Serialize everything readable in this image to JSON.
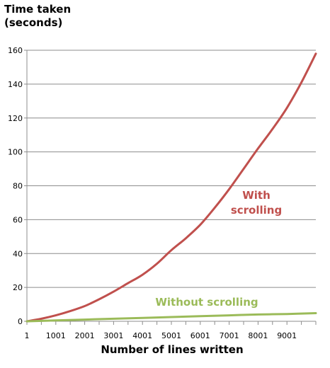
{
  "chart_data": {
    "type": "line",
    "ylabel_lines": [
      "Time taken",
      "(seconds)"
    ],
    "xlabel": "Number of lines written",
    "ylim": [
      0,
      160
    ],
    "y_ticks": [
      0,
      20,
      40,
      60,
      80,
      100,
      120,
      140,
      160
    ],
    "x_ticks": [
      1,
      1001,
      2001,
      3001,
      4001,
      5001,
      6001,
      7001,
      8001,
      9001
    ],
    "xlim": [
      1,
      10001
    ],
    "grid": "horizontal",
    "series": [
      {
        "name_lines": [
          "With",
          "scrolling"
        ],
        "color": "#c0504d",
        "x": [
          1,
          501,
          1001,
          1501,
          2001,
          2501,
          3001,
          3501,
          4001,
          4501,
          5001,
          5501,
          6001,
          6501,
          7001,
          7501,
          8001,
          8501,
          9001,
          9501,
          10001
        ],
        "y": [
          0,
          1.5,
          3.5,
          6,
          9,
          13,
          17.5,
          22.5,
          27.5,
          34,
          42,
          49,
          57,
          67,
          78,
          90,
          102,
          113.5,
          126,
          141,
          158
        ]
      },
      {
        "name_lines": [
          "Without scrolling"
        ],
        "color": "#9bbb59",
        "x": [
          1,
          1001,
          2001,
          3001,
          4001,
          5001,
          6001,
          7001,
          8001,
          9001,
          10001
        ],
        "y": [
          0,
          0.5,
          1,
          1.5,
          2,
          2.5,
          3,
          3.5,
          4,
          4.3,
          4.8
        ]
      }
    ]
  }
}
